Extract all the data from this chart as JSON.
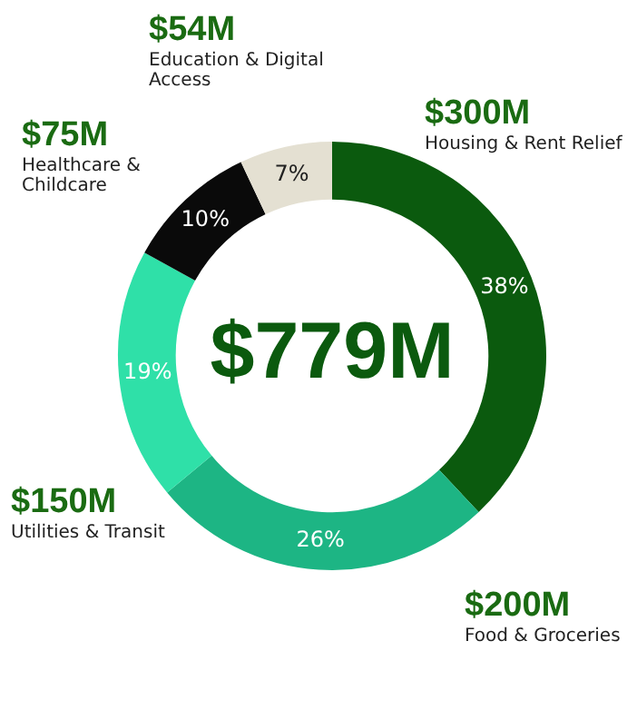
{
  "chart_data": {
    "type": "donut",
    "title": "$779M",
    "categories": [
      "Housing & Rent Relief",
      "Food & Groceries",
      "Utilities & Transit",
      "Healthcare & Childcare",
      "Education & Digital Access"
    ],
    "values": [
      38,
      26,
      19,
      10,
      7
    ],
    "colors": [
      "#0b5a0e",
      "#1db584",
      "#2fe0a8",
      "#0a0a0a",
      "#e4e0d2"
    ],
    "value_labels": [
      "38%",
      "26%",
      "19%",
      "10%",
      "7%"
    ],
    "annotations": [
      "$300M",
      "$200M",
      "$150M",
      "$75M",
      "$54M"
    ],
    "legend": false
  }
}
